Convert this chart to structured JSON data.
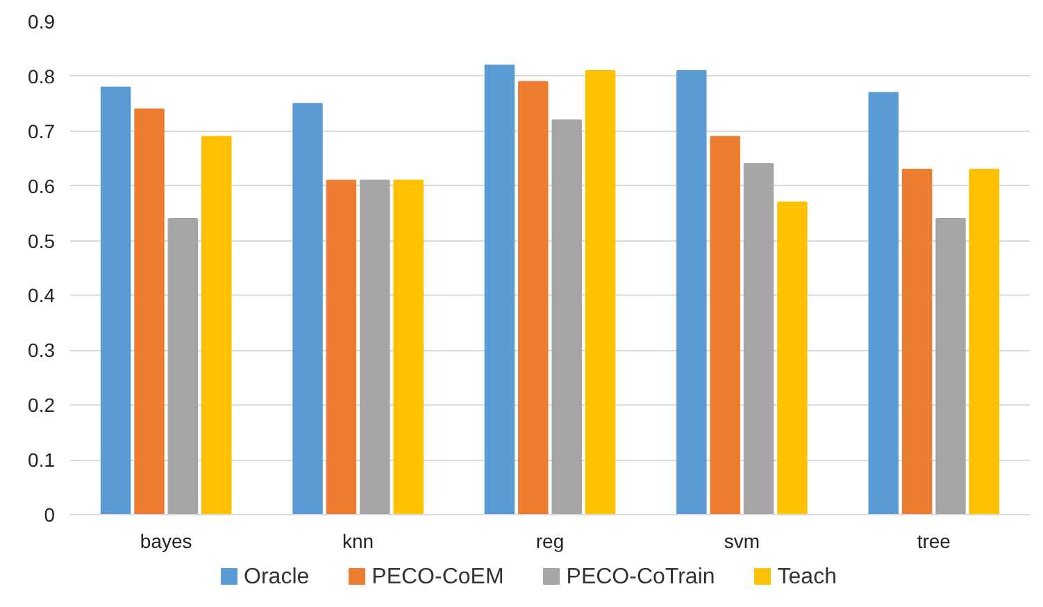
{
  "chart_data": {
    "type": "bar",
    "categories": [
      "bayes",
      "knn",
      "reg",
      "svm",
      "tree"
    ],
    "series": [
      {
        "name": "Oracle",
        "color": "#5b9bd5",
        "values": [
          0.78,
          0.75,
          0.82,
          0.81,
          0.77
        ]
      },
      {
        "name": "PECO-CoEM",
        "color": "#ed7d31",
        "values": [
          0.74,
          0.61,
          0.79,
          0.69,
          0.63
        ]
      },
      {
        "name": "PECO-CoTrain",
        "color": "#a5a5a5",
        "values": [
          0.54,
          0.61,
          0.72,
          0.64,
          0.54
        ]
      },
      {
        "name": "Teach",
        "color": "#ffc000",
        "values": [
          0.69,
          0.61,
          0.81,
          0.57,
          0.63
        ]
      }
    ],
    "ylim": [
      0,
      0.9
    ],
    "yticks": [
      0,
      0.1,
      0.2,
      0.3,
      0.4,
      0.5,
      0.6,
      0.7,
      0.8,
      0.9
    ],
    "grid": "y",
    "legend": "bottom"
  }
}
